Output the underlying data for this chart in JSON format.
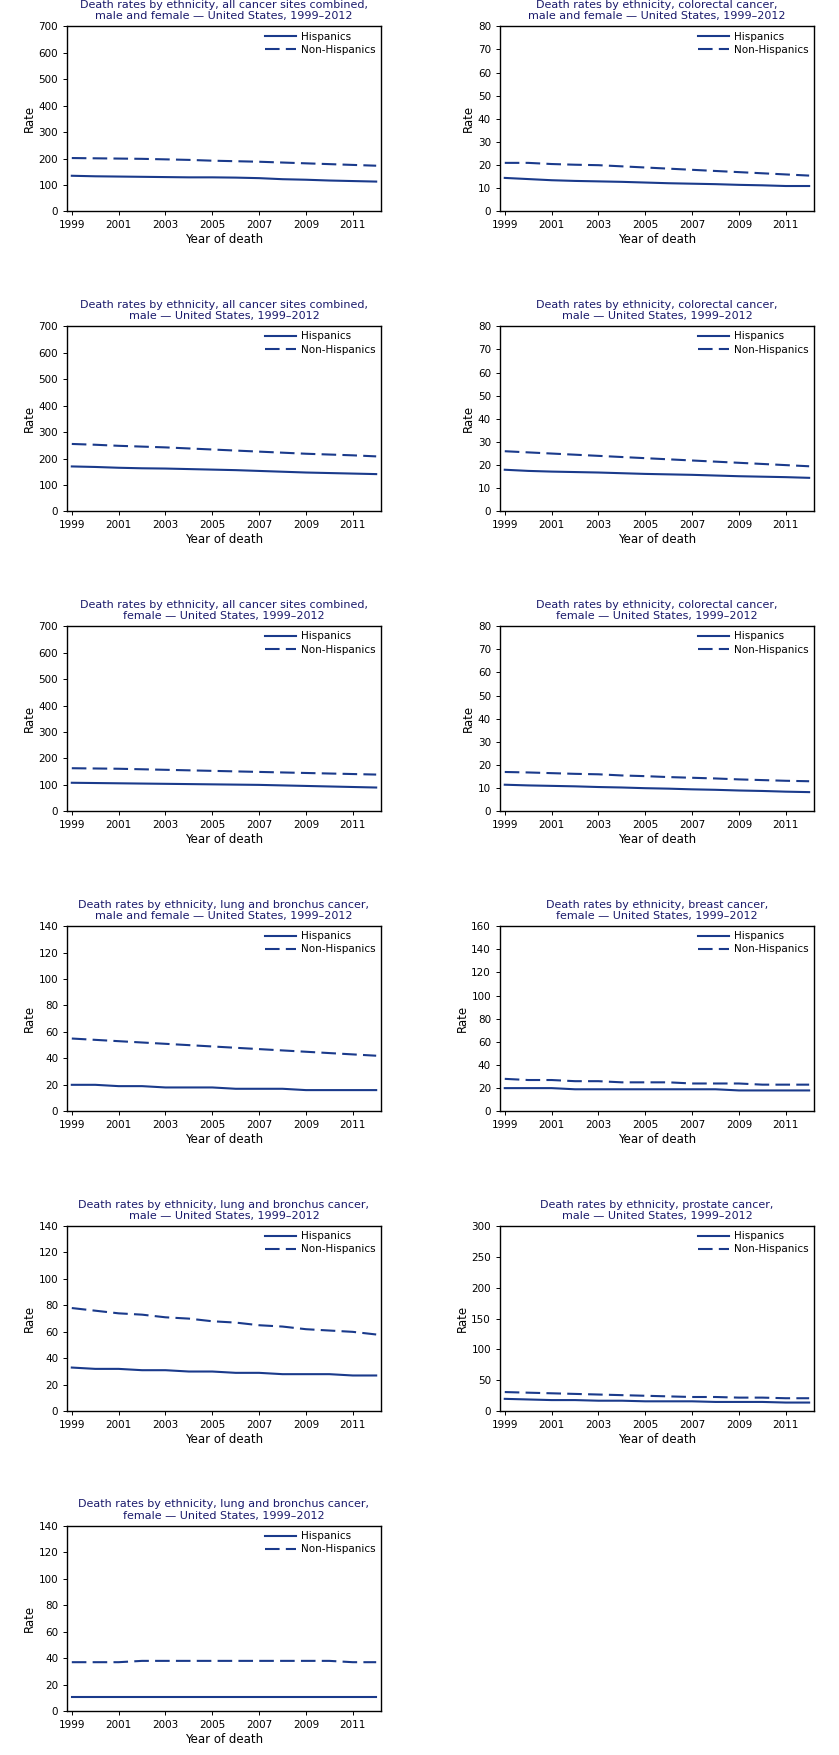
{
  "years": [
    1999,
    2000,
    2001,
    2002,
    2003,
    2004,
    2005,
    2006,
    2007,
    2008,
    2009,
    2010,
    2011,
    2012
  ],
  "charts": [
    {
      "title_parts": [
        {
          "text": "Death rates by ethnicity, ",
          "color": "#1a1a6b",
          "style": "normal"
        },
        {
          "text": "all cancer sites combined,",
          "color": "#1a1a6b",
          "style": "normal"
        },
        {
          "text": "\nmale and female",
          "color": "#1a1a6b",
          "style": "normal"
        },
        {
          "text": " — United States, 1999–2012",
          "color": "#1a1a6b",
          "style": "normal"
        }
      ],
      "title": "Death rates by ethnicity, all cancer sites combined,\nmale and female — United States, 1999–2012",
      "title_underline": "all cancer sites combined,",
      "ylim": [
        0,
        700
      ],
      "yticks": [
        0,
        100,
        200,
        300,
        400,
        500,
        600,
        700
      ],
      "hisp": [
        135,
        133,
        132,
        131,
        130,
        129,
        129,
        128,
        126,
        122,
        120,
        117,
        115,
        113
      ],
      "non_hisp": [
        202,
        201,
        200,
        199,
        197,
        195,
        192,
        190,
        188,
        185,
        182,
        179,
        176,
        173
      ],
      "row": 0,
      "col": 0
    },
    {
      "title": "Death rates by ethnicity, colorectal cancer,\nmale and female — United States, 1999–2012",
      "title_underline": "colorectal cancer,",
      "ylim": [
        0,
        80
      ],
      "yticks": [
        0,
        10,
        20,
        30,
        40,
        50,
        60,
        70,
        80
      ],
      "hisp": [
        14.5,
        14.0,
        13.5,
        13.2,
        13.0,
        12.8,
        12.5,
        12.2,
        12.0,
        11.8,
        11.5,
        11.3,
        11.0,
        11.0
      ],
      "non_hisp": [
        21.0,
        21.0,
        20.5,
        20.2,
        20.0,
        19.5,
        19.0,
        18.5,
        18.0,
        17.5,
        17.0,
        16.5,
        16.0,
        15.5
      ],
      "row": 0,
      "col": 1
    },
    {
      "title": "Death rates by ethnicity, all cancer sites combined,\nmale — United States, 1999–2012",
      "title_underline": "all cancer sites combined,",
      "ylim": [
        0,
        700
      ],
      "yticks": [
        0,
        100,
        200,
        300,
        400,
        500,
        600,
        700
      ],
      "hisp": [
        170,
        168,
        165,
        163,
        162,
        160,
        158,
        156,
        153,
        150,
        147,
        145,
        143,
        141
      ],
      "non_hisp": [
        255,
        252,
        248,
        245,
        242,
        238,
        234,
        230,
        226,
        222,
        218,
        215,
        212,
        208
      ],
      "row": 1,
      "col": 0
    },
    {
      "title": "Death rates by ethnicity, colorectal cancer,\nmale — United States, 1999–2012",
      "title_underline": "colorectal cancer,",
      "ylim": [
        0,
        80
      ],
      "yticks": [
        0,
        10,
        20,
        30,
        40,
        50,
        60,
        70,
        80
      ],
      "hisp": [
        18.0,
        17.5,
        17.2,
        17.0,
        16.8,
        16.5,
        16.2,
        16.0,
        15.8,
        15.5,
        15.2,
        15.0,
        14.8,
        14.5
      ],
      "non_hisp": [
        26.0,
        25.5,
        25.0,
        24.5,
        24.0,
        23.5,
        23.0,
        22.5,
        22.0,
        21.5,
        21.0,
        20.5,
        20.0,
        19.5
      ],
      "row": 1,
      "col": 1
    },
    {
      "title": "Death rates by ethnicity, all cancer sites combined,\nfemale — United States, 1999–2012",
      "title_underline": "all cancer sites combined,",
      "ylim": [
        0,
        700
      ],
      "yticks": [
        0,
        100,
        200,
        300,
        400,
        500,
        600,
        700
      ],
      "hisp": [
        108,
        107,
        106,
        105,
        104,
        103,
        102,
        101,
        100,
        98,
        96,
        94,
        92,
        90
      ],
      "non_hisp": [
        163,
        162,
        161,
        159,
        157,
        155,
        153,
        151,
        149,
        147,
        145,
        143,
        141,
        139
      ],
      "row": 2,
      "col": 0
    },
    {
      "title": "Death rates by ethnicity, colorectal cancer,\nfemale — United States, 1999–2012",
      "title_underline": "colorectal cancer,",
      "ylim": [
        0,
        80
      ],
      "yticks": [
        0,
        10,
        20,
        30,
        40,
        50,
        60,
        70,
        80
      ],
      "hisp": [
        11.5,
        11.2,
        11.0,
        10.8,
        10.5,
        10.3,
        10.0,
        9.8,
        9.5,
        9.3,
        9.0,
        8.8,
        8.5,
        8.3
      ],
      "non_hisp": [
        17.0,
        16.8,
        16.5,
        16.2,
        16.0,
        15.5,
        15.2,
        14.8,
        14.5,
        14.2,
        13.8,
        13.5,
        13.2,
        13.0
      ],
      "row": 2,
      "col": 1
    },
    {
      "title": "Death rates by ethnicity, lung and bronchus cancer,\nmale and female — United States, 1999–2012",
      "title_underline": "lung and bronchus cancer,",
      "ylim": [
        0,
        140
      ],
      "yticks": [
        0,
        20,
        40,
        60,
        80,
        100,
        120,
        140
      ],
      "hisp": [
        20,
        20,
        19,
        19,
        18,
        18,
        18,
        17,
        17,
        17,
        16,
        16,
        16,
        16
      ],
      "non_hisp": [
        55,
        54,
        53,
        52,
        51,
        50,
        49,
        48,
        47,
        46,
        45,
        44,
        43,
        42
      ],
      "row": 3,
      "col": 0
    },
    {
      "title": "Death rates by ethnicity, breast cancer,\nfemale — United States, 1999–2012",
      "title_underline": "breast cancer,",
      "ylim": [
        0,
        160
      ],
      "yticks": [
        0,
        20,
        40,
        60,
        80,
        100,
        120,
        140,
        160
      ],
      "hisp": [
        20,
        20,
        20,
        19,
        19,
        19,
        19,
        19,
        19,
        19,
        18,
        18,
        18,
        18
      ],
      "non_hisp": [
        28,
        27,
        27,
        26,
        26,
        25,
        25,
        25,
        24,
        24,
        24,
        23,
        23,
        23
      ],
      "row": 3,
      "col": 1
    },
    {
      "title": "Death rates by ethnicity, lung and bronchus cancer,\nmale — United States, 1999–2012",
      "title_underline": "lung and bronchus cancer,",
      "ylim": [
        0,
        140
      ],
      "yticks": [
        0,
        20,
        40,
        60,
        80,
        100,
        120,
        140
      ],
      "hisp": [
        33,
        32,
        32,
        31,
        31,
        30,
        30,
        29,
        29,
        28,
        28,
        28,
        27,
        27
      ],
      "non_hisp": [
        78,
        76,
        74,
        73,
        71,
        70,
        68,
        67,
        65,
        64,
        62,
        61,
        60,
        58
      ],
      "row": 4,
      "col": 0
    },
    {
      "title": "Death rates by ethnicity, prostate cancer,\nmale — United States, 1999–2012",
      "title_underline": "prostate cancer,",
      "ylim": [
        0,
        300
      ],
      "yticks": [
        0,
        50,
        100,
        150,
        200,
        250,
        300
      ],
      "hisp": [
        20,
        19,
        18,
        18,
        17,
        17,
        16,
        16,
        16,
        15,
        15,
        15,
        14,
        14
      ],
      "non_hisp": [
        31,
        30,
        29,
        28,
        27,
        26,
        25,
        24,
        23,
        23,
        22,
        22,
        21,
        21
      ],
      "row": 4,
      "col": 1
    },
    {
      "title": "Death rates by ethnicity, lung and bronchus cancer,\nfemale — United States, 1999–2012",
      "title_underline": "lung and bronchus cancer,",
      "ylim": [
        0,
        140
      ],
      "yticks": [
        0,
        20,
        40,
        60,
        80,
        100,
        120,
        140
      ],
      "hisp": [
        11,
        11,
        11,
        11,
        11,
        11,
        11,
        11,
        11,
        11,
        11,
        11,
        11,
        11
      ],
      "non_hisp": [
        37,
        37,
        37,
        38,
        38,
        38,
        38,
        38,
        38,
        38,
        38,
        38,
        37,
        37
      ],
      "row": 5,
      "col": 0
    }
  ],
  "line_color": "#1a3a8b",
  "xlabel": "Year of death",
  "ylabel": "Rate",
  "xticks": [
    1999,
    2001,
    2003,
    2005,
    2007,
    2009,
    2011
  ],
  "legend_hisp": "Hispanics",
  "legend_non_hisp": "Non-Hispanics",
  "title_color": "#1a1a6b",
  "underline_color": "#8b0000",
  "background_color": "#ffffff",
  "fig_width": 8.39,
  "fig_height": 17.55,
  "dpi": 100
}
